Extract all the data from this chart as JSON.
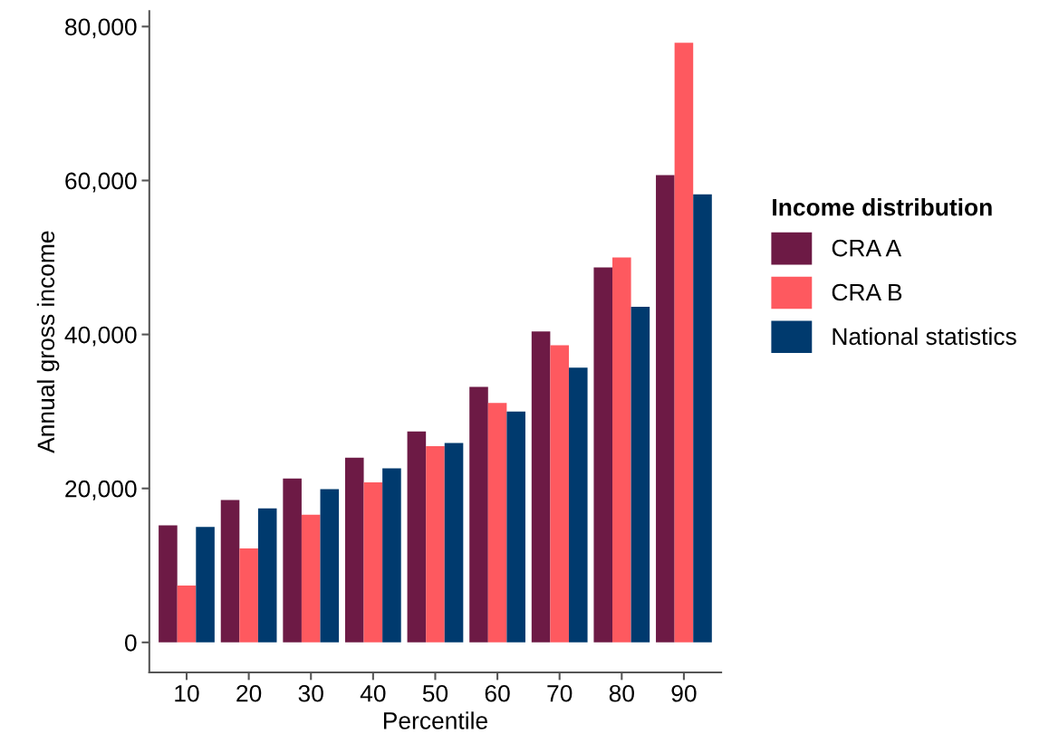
{
  "chart_data": {
    "type": "bar",
    "xlabel": "Percentile",
    "ylabel": "Annual gross income",
    "legend_title": "Income distribution",
    "legend": "right",
    "categories": [
      "10",
      "20",
      "30",
      "40",
      "50",
      "60",
      "70",
      "80",
      "90"
    ],
    "series": [
      {
        "name": "CRA A",
        "color": "#6d1a45",
        "values": [
          15200,
          18500,
          21300,
          24000,
          27400,
          33200,
          40400,
          48700,
          60700
        ]
      },
      {
        "name": "CRA B",
        "color": "#fe595f",
        "values": [
          7400,
          12200,
          16600,
          20800,
          25500,
          31100,
          38600,
          50000,
          77900
        ]
      },
      {
        "name": "National statistics",
        "color": "#003a6e",
        "values": [
          15000,
          17400,
          19900,
          22600,
          25900,
          30000,
          35700,
          43600,
          58200
        ]
      }
    ],
    "ylim": [
      -3900,
      82000
    ],
    "yticks": [
      0,
      {
        "value": 20000,
        "label": "20,000"
      },
      {
        "value": 40000,
        "label": "40,000"
      },
      {
        "value": 60000,
        "label": "60,000"
      },
      {
        "value": 80000,
        "label": "80,000"
      }
    ],
    "grid": false
  }
}
